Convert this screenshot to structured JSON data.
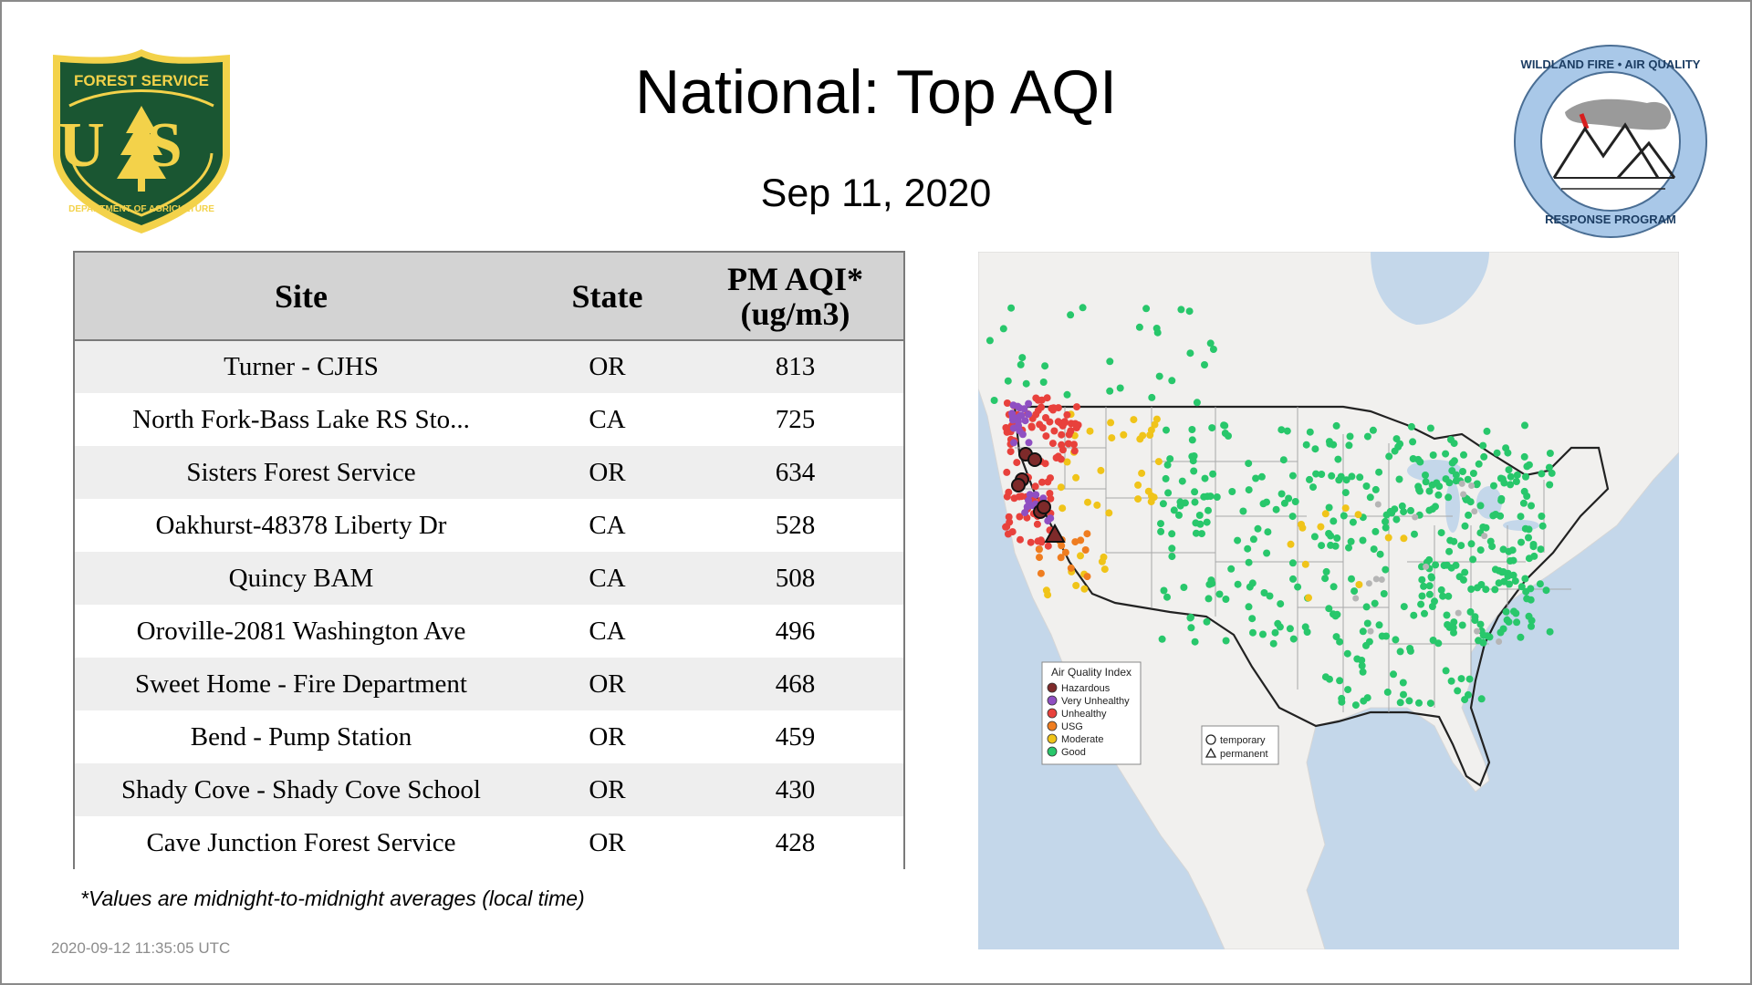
{
  "title": "National: Top AQI",
  "subtitle": "Sep 11, 2020",
  "logos": {
    "forest_service": {
      "top_text": "FOREST SERVICE",
      "letters": "US",
      "bottom_text": "DEPARTMENT OF AGRICULTURE",
      "colors": {
        "green": "#1a5632",
        "gold": "#f3d24a"
      }
    },
    "wildland_fire": {
      "top_text": "WILDLAND FIRE • AIR QUALITY",
      "bottom_text": "RESPONSE PROGRAM",
      "colors": {
        "ring": "#a9c8e8",
        "smoke": "#9a9a9a",
        "flag": "#d81e1e"
      }
    }
  },
  "table": {
    "headers": {
      "site": "Site",
      "state": "State",
      "aqi_line1": "PM AQI*",
      "aqi_line2": "(ug/m3)"
    },
    "rows": [
      {
        "site": "Turner - CJHS",
        "state": "OR",
        "aqi": "813"
      },
      {
        "site": "North Fork-Bass Lake RS Sto...",
        "state": "CA",
        "aqi": "725"
      },
      {
        "site": "Sisters Forest Service",
        "state": "OR",
        "aqi": "634"
      },
      {
        "site": "Oakhurst-48378 Liberty Dr",
        "state": "CA",
        "aqi": "528"
      },
      {
        "site": "Quincy BAM",
        "state": "CA",
        "aqi": "508"
      },
      {
        "site": "Oroville-2081 Washington Ave",
        "state": "CA",
        "aqi": "496"
      },
      {
        "site": "Sweet Home - Fire Department",
        "state": "OR",
        "aqi": "468"
      },
      {
        "site": "Bend - Pump Station",
        "state": "OR",
        "aqi": "459"
      },
      {
        "site": "Shady Cove - Shady Cove School",
        "state": "OR",
        "aqi": "430"
      },
      {
        "site": "Cave Junction Forest Service",
        "state": "OR",
        "aqi": "428"
      }
    ]
  },
  "footnote": "*Values are midnight-to-midnight averages (local time)",
  "timestamp": "2020-09-12 11:35:05 UTC",
  "map": {
    "legend": {
      "title": "Air Quality Index",
      "categories": [
        {
          "label": "Hazardous",
          "color": "#7e2a2a"
        },
        {
          "label": "Very Unhealthy",
          "color": "#8f4fc2"
        },
        {
          "label": "Unhealthy",
          "color": "#e8413c"
        },
        {
          "label": "USG",
          "color": "#ef7d20"
        },
        {
          "label": "Moderate",
          "color": "#f0c419"
        },
        {
          "label": "Good",
          "color": "#28c76b"
        }
      ]
    },
    "shape_legend": {
      "temporary": "temporary",
      "permanent": "permanent"
    },
    "colors": {
      "water": "#c4d7ea",
      "land": "#f1f0ee",
      "no_data": "#b5b5b5"
    }
  }
}
